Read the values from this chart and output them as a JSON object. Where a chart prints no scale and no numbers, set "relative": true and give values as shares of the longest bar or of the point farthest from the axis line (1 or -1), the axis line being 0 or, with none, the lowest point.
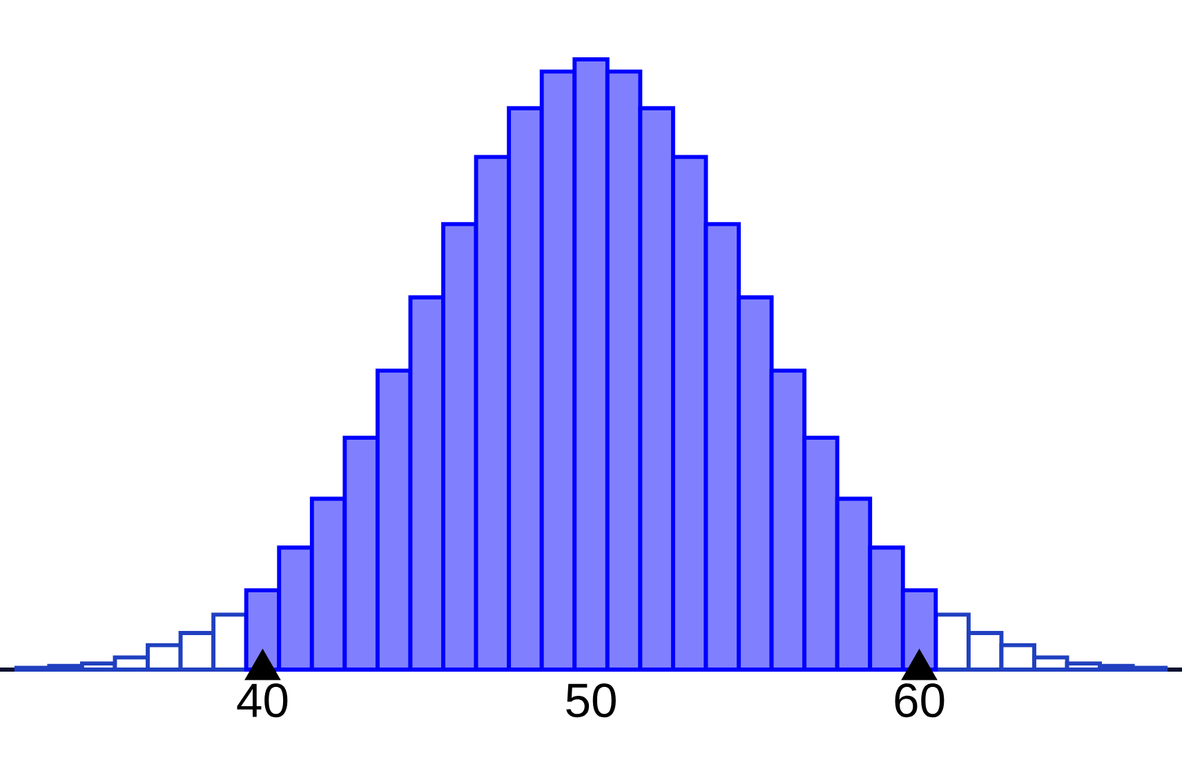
{
  "chart_data": {
    "type": "bar",
    "relative": true,
    "xlim": [
      32,
      68
    ],
    "xticks": [
      40,
      50,
      60
    ],
    "series": [
      {
        "color": "#ffffff",
        "x": [
          33,
          34,
          35,
          36,
          37,
          38,
          39,
          61,
          62,
          63,
          64,
          65,
          66,
          67
        ],
        "values": [
          0.003,
          0.006,
          0.01,
          0.02,
          0.04,
          0.06,
          0.09,
          0.09,
          0.06,
          0.04,
          0.02,
          0.01,
          0.006,
          0.003
        ]
      },
      {
        "color": "#8080ff",
        "x": [
          40,
          41,
          42,
          43,
          44,
          45,
          46,
          47,
          48,
          49,
          50,
          51,
          52,
          53,
          54,
          55,
          56,
          57,
          58,
          59,
          60
        ],
        "values": [
          0.13,
          0.2,
          0.28,
          0.38,
          0.49,
          0.61,
          0.73,
          0.84,
          0.92,
          0.98,
          1,
          0.98,
          0.92,
          0.84,
          0.73,
          0.61,
          0.49,
          0.38,
          0.28,
          0.2,
          0.13
        ]
      },
      {
        "type": "scatter",
        "marker": "triangle",
        "color": "#000000",
        "x": [
          40,
          60
        ],
        "values": [
          0,
          0
        ]
      }
    ]
  }
}
